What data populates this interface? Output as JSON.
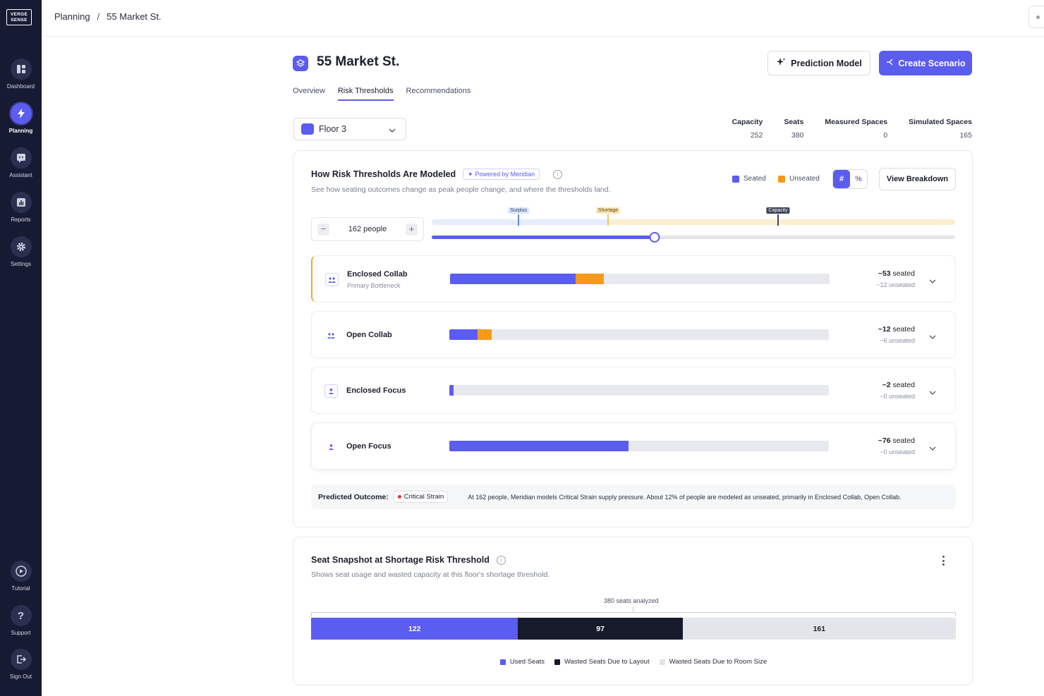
{
  "sidebar": {
    "logo": "VERGE SENSE",
    "items": [
      {
        "label": "Dashboard",
        "icon": "dashboard-icon"
      },
      {
        "label": "Planning",
        "icon": "lightning-icon"
      },
      {
        "label": "Assistant",
        "icon": "assistant-icon"
      },
      {
        "label": "Reports",
        "icon": "reports-icon"
      },
      {
        "label": "Settings",
        "icon": "gear-icon"
      }
    ],
    "bottom_items": [
      {
        "label": "Tutorial",
        "icon": "play-icon"
      },
      {
        "label": "Support",
        "icon": "question-icon"
      },
      {
        "label": "Sign Out",
        "icon": "sign-out-icon"
      }
    ]
  },
  "breadcrumb": {
    "parent": "Planning",
    "separator": "/",
    "current": "55 Market St."
  },
  "header": {
    "title": "55 Market St.",
    "prediction_button": "Prediction Model",
    "create_button": "Create Scenario"
  },
  "tabs": [
    {
      "label": "Overview",
      "active": false
    },
    {
      "label": "Risk Thresholds",
      "active": true
    },
    {
      "label": "Recommendations",
      "active": false
    }
  ],
  "floor_select": {
    "value": "Floor 3"
  },
  "stats": [
    {
      "label": "Capacity",
      "value": "252"
    },
    {
      "label": "Seats",
      "value": "380"
    },
    {
      "label": "Measured Spaces",
      "value": "0"
    },
    {
      "label": "Simulated Spaces",
      "value": "165"
    }
  ],
  "risk_card": {
    "title": "How Risk Thresholds Are Modeled",
    "powered_by": "Powered by Meridian",
    "subtitle": "See how seating outcomes change as peak people change, and where the thresholds land.",
    "legend_seated": "Seated",
    "legend_unseated": "Unseated",
    "toggle_count": "#",
    "toggle_percent": "%",
    "view_breakdown": "View Breakdown",
    "stepper_value": "162 people",
    "stepper_minus": "−",
    "stepper_plus": "+",
    "thresholds": {
      "surplus": "Surplus",
      "shortage": "Shortage",
      "capacity": "Capacity"
    },
    "slider_fraction": 0.426,
    "colors": {
      "seated": "#5b5cf0",
      "unseated": "#f59a1b"
    },
    "rows": [
      {
        "name": "Enclosed Collab",
        "sub": "Primary Bottleneck",
        "seated": "~53",
        "seated_suffix": " seated",
        "unseated": "~12 unseated",
        "seated_frac": 0.33,
        "unseated_frac": 0.075
      },
      {
        "name": "Open Collab",
        "sub": "",
        "seated": "~12",
        "seated_suffix": " seated",
        "unseated": "~6 unseated",
        "seated_frac": 0.075,
        "unseated_frac": 0.037
      },
      {
        "name": "Enclosed Focus",
        "sub": "",
        "seated": "~2",
        "seated_suffix": " seated",
        "unseated": "~0 unseated",
        "seated_frac": 0.012,
        "unseated_frac": 0
      },
      {
        "name": "Open Focus",
        "sub": "",
        "seated": "~76",
        "seated_suffix": " seated",
        "unseated": "~0 unseated",
        "seated_frac": 0.472,
        "unseated_frac": 0
      }
    ],
    "outcome_label": "Predicted Outcome:",
    "outcome_badge": "Critical Strain",
    "outcome_text": "At 162 people, Meridian models Critical Strain supply pressure. About 12% of people are modeled as unseated, primarily in Enclosed Collab, Open Collab."
  },
  "seat_card": {
    "title": "Seat Snapshot at Shortage Risk Threshold",
    "subtitle": "Shows seat usage and wasted capacity at this floor's shortage threshold.",
    "caption": "380 seats analyzed",
    "segments": [
      {
        "label": "Used Seats",
        "value": 122,
        "color": "#5b5cf0",
        "text_color": "#ffffff"
      },
      {
        "label": "Wasted Seats Due to Layout",
        "value": 97,
        "color": "#161a2b",
        "text_color": "#ffffff"
      },
      {
        "label": "Wasted Seats Due to Room Size",
        "value": 161,
        "color": "#e3e5ea",
        "text_color": "#1c1f2b"
      }
    ]
  }
}
